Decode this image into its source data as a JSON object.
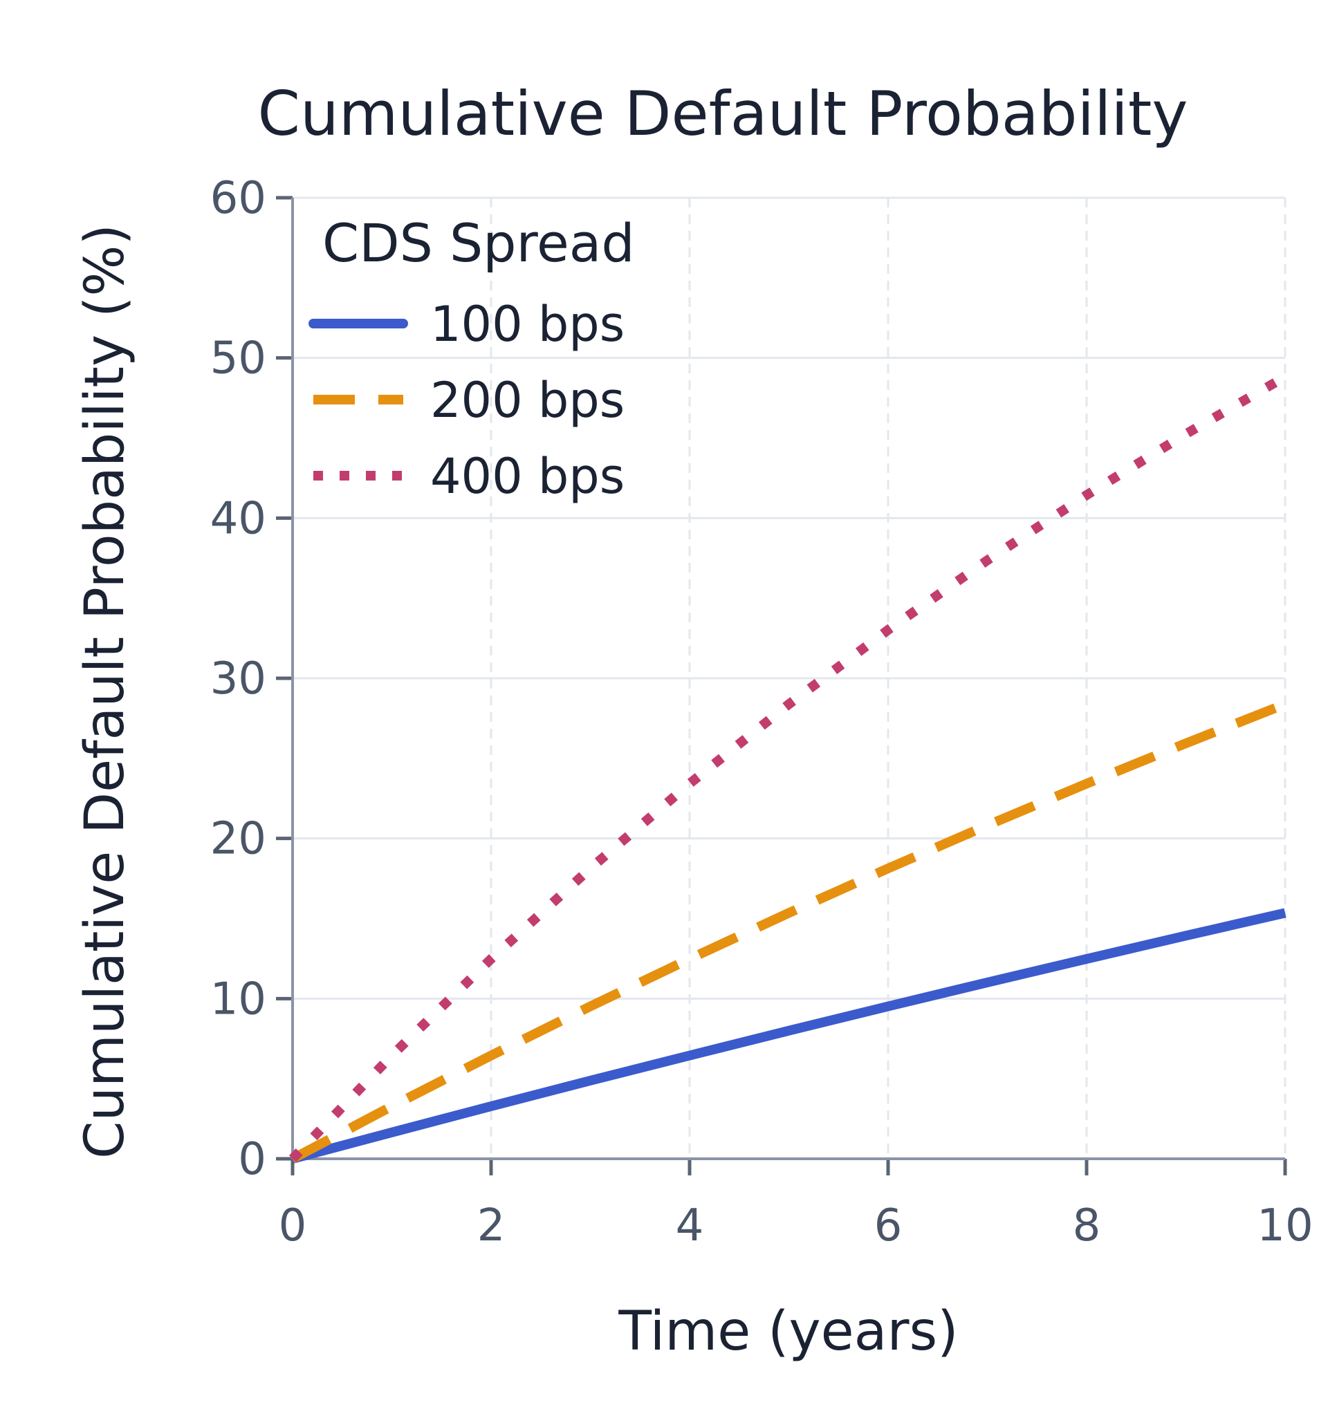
{
  "chart_data": {
    "type": "line",
    "title": "Cumulative Default Probability",
    "xlabel": "Time (years)",
    "ylabel": "Cumulative Default Probability (%)",
    "xlim": [
      0,
      10
    ],
    "ylim": [
      0,
      60
    ],
    "x_ticks": [
      "0",
      "2",
      "4",
      "6",
      "8",
      "10"
    ],
    "y_ticks": [
      "0",
      "10",
      "20",
      "30",
      "40",
      "50",
      "60"
    ],
    "x": [
      0,
      1,
      2,
      3,
      4,
      5,
      6,
      7,
      8,
      9,
      10
    ],
    "series": [
      {
        "name": "100 bps",
        "color": "#3b5bcc",
        "style": "solid",
        "values": [
          0,
          1.65,
          3.28,
          4.88,
          6.45,
          8.0,
          9.52,
          11.01,
          12.48,
          13.93,
          15.35
        ]
      },
      {
        "name": "200 bps",
        "color": "#e69010",
        "style": "dashed",
        "values": [
          0,
          3.28,
          6.45,
          9.52,
          12.48,
          15.35,
          18.13,
          20.82,
          23.42,
          25.94,
          28.38
        ]
      },
      {
        "name": "400 bps",
        "color": "#c23d6e",
        "style": "dotted",
        "values": [
          0,
          6.45,
          12.48,
          18.13,
          23.42,
          28.38,
          33.02,
          37.37,
          41.44,
          45.25,
          48.82
        ]
      }
    ],
    "legend": {
      "title": "CDS Spread",
      "placement": "top-left"
    },
    "grid": {
      "y": true,
      "x": "dashed"
    }
  }
}
